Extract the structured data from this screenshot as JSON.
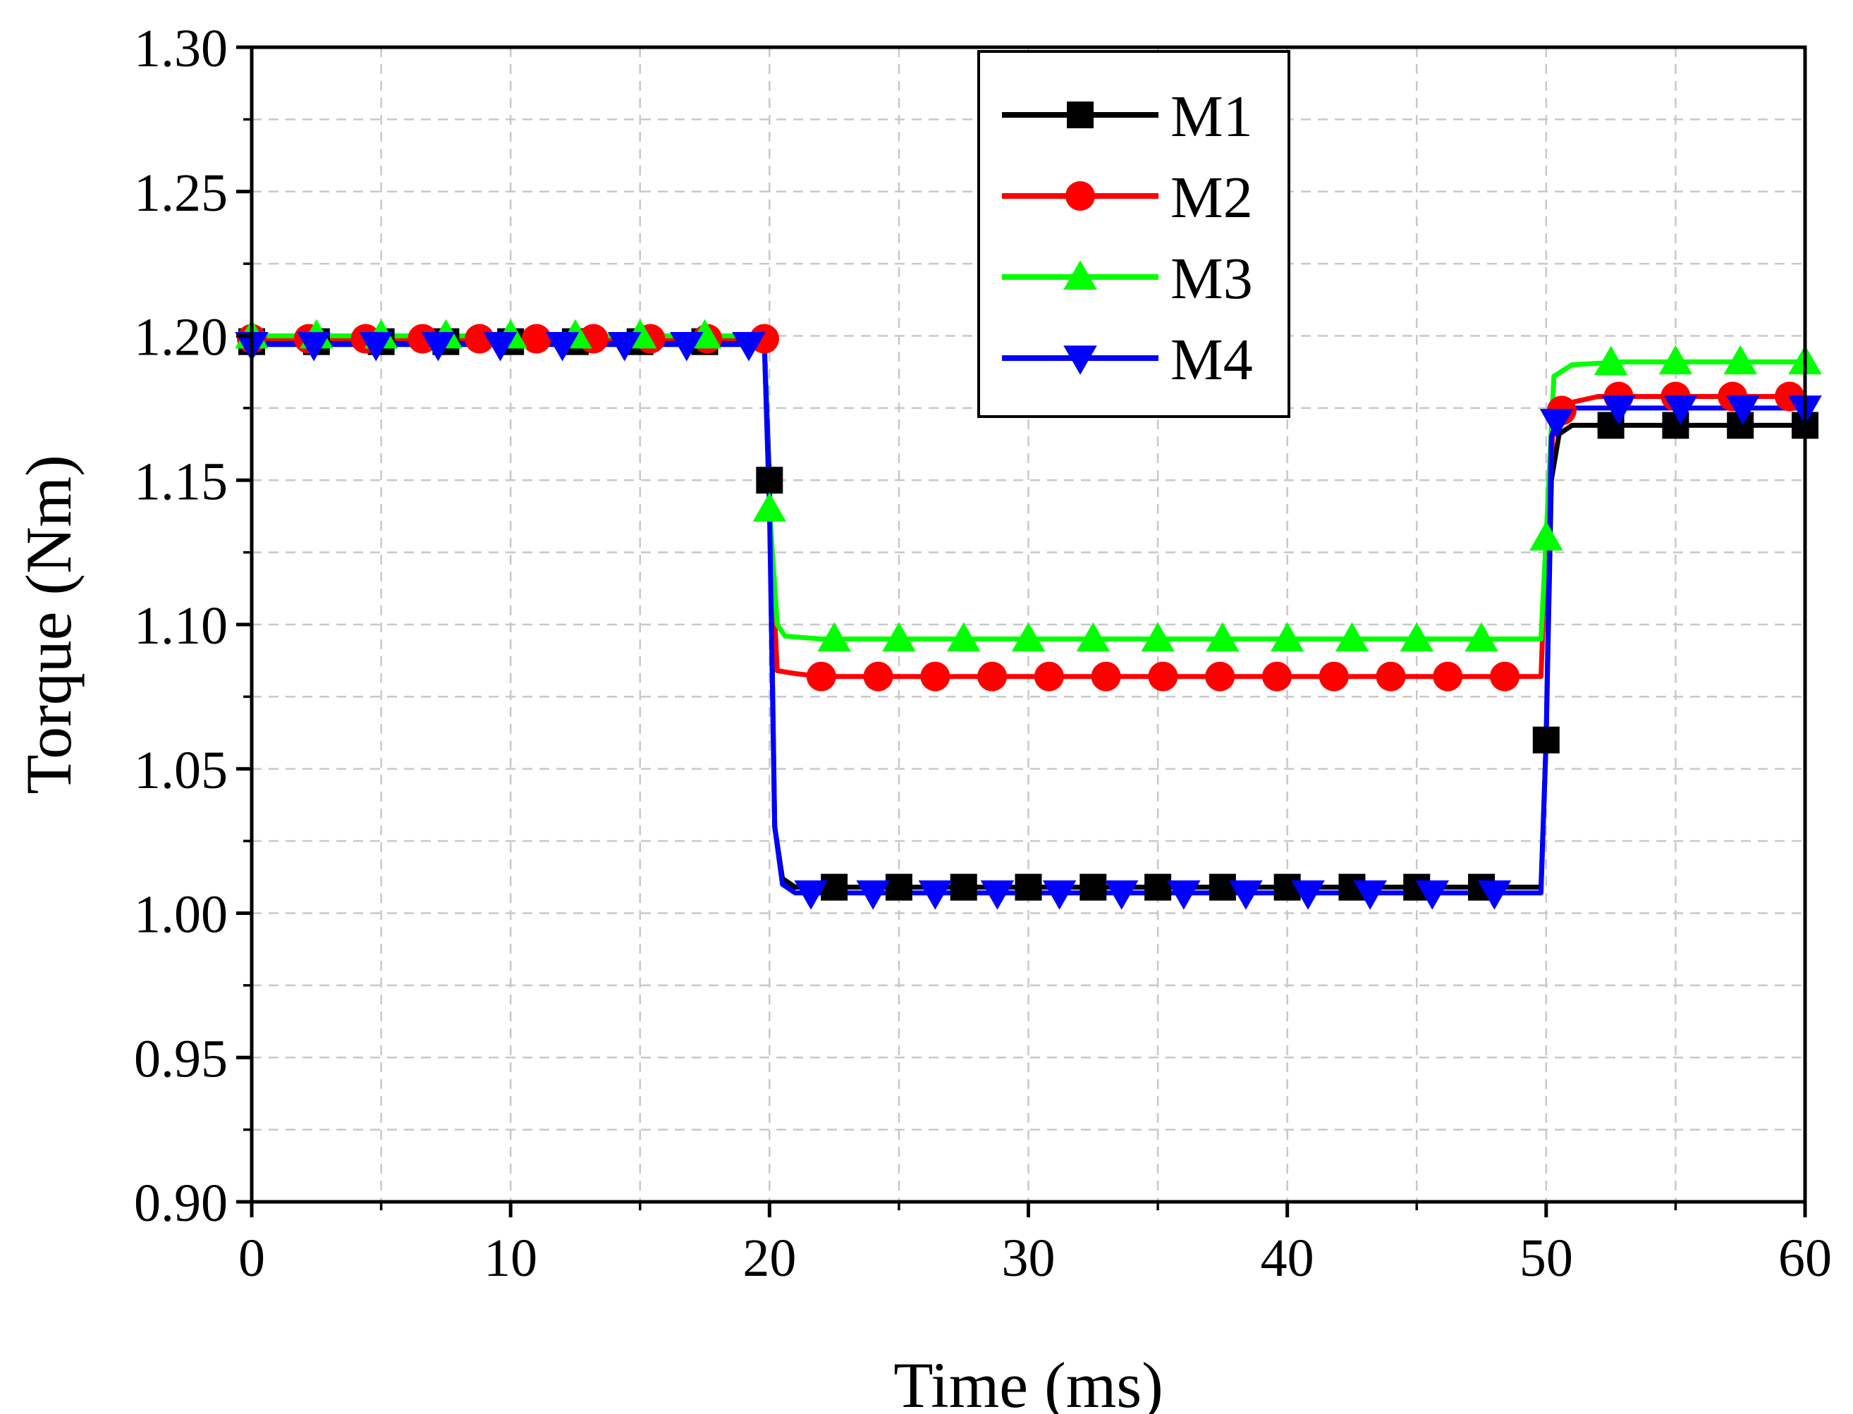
{
  "chart_data": {
    "type": "line",
    "title": "",
    "xlabel": "Time (ms)",
    "ylabel": "Torque (Nm)",
    "xlim": [
      0,
      60
    ],
    "ylim": [
      0.9,
      1.3
    ],
    "xticks": [
      0,
      10,
      20,
      30,
      40,
      50,
      60
    ],
    "xtick_labels": [
      "0",
      "10",
      "20",
      "30",
      "40",
      "50",
      "60"
    ],
    "yticks": [
      0.9,
      0.95,
      1.0,
      1.05,
      1.1,
      1.15,
      1.2,
      1.25,
      1.3
    ],
    "ytick_labels": [
      "0.90",
      "0.95",
      "1.00",
      "1.05",
      "1.10",
      "1.15",
      "1.20",
      "1.25",
      "1.30"
    ],
    "grid": true,
    "legend_position": "top-center",
    "series": [
      {
        "name": "M1",
        "color": "#000000",
        "marker": "square",
        "marker_start": 0,
        "marker_step": 2.5,
        "x": [
          0,
          19.8,
          20.0,
          20.2,
          20.5,
          21,
          49.8,
          50.0,
          50.2,
          50.5,
          51,
          60
        ],
        "y": [
          1.198,
          1.198,
          1.15,
          1.03,
          1.012,
          1.009,
          1.009,
          1.06,
          1.15,
          1.166,
          1.169,
          1.169
        ]
      },
      {
        "name": "M2",
        "color": "#ff0000",
        "marker": "circle",
        "marker_start": 0,
        "marker_step": 2.2,
        "x": [
          0,
          19.8,
          20.0,
          20.3,
          21,
          22,
          49.8,
          50.0,
          50.3,
          51,
          52,
          60
        ],
        "y": [
          1.199,
          1.199,
          1.14,
          1.084,
          1.083,
          1.082,
          1.082,
          1.13,
          1.172,
          1.177,
          1.179,
          1.179
        ]
      },
      {
        "name": "M3",
        "color": "#00ff00",
        "marker": "triangle-up",
        "marker_start": 0,
        "marker_step": 2.5,
        "x": [
          0,
          19.8,
          20.0,
          20.3,
          20.6,
          22,
          49.8,
          50.0,
          50.3,
          51,
          53,
          60
        ],
        "y": [
          1.2,
          1.2,
          1.14,
          1.1,
          1.096,
          1.095,
          1.095,
          1.13,
          1.186,
          1.19,
          1.191,
          1.191
        ]
      },
      {
        "name": "M4",
        "color": "#0000ff",
        "marker": "triangle-down",
        "marker_start": 0,
        "marker_step": 2.4,
        "x": [
          0,
          19.8,
          20.0,
          20.2,
          20.5,
          21,
          49.8,
          50.0,
          50.2,
          50.5,
          51,
          60
        ],
        "y": [
          1.197,
          1.197,
          1.14,
          1.03,
          1.01,
          1.007,
          1.007,
          1.06,
          1.165,
          1.173,
          1.175,
          1.175
        ]
      }
    ]
  }
}
